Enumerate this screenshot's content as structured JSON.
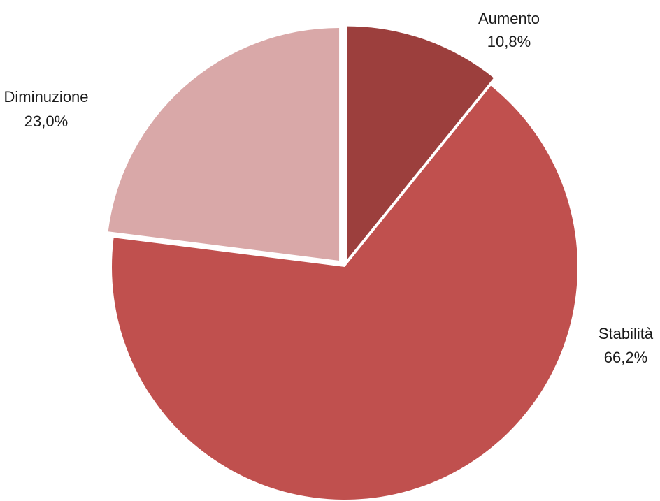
{
  "chart_data": {
    "type": "pie",
    "start_angle_deg": 0,
    "direction": "clockwise",
    "slices": [
      {
        "label": "Aumento",
        "value": 10.8,
        "value_label": "10,8%",
        "color": "#9c3f3d",
        "exploded": true
      },
      {
        "label": "Stabilità",
        "value": 66.2,
        "value_label": "66,2%",
        "color": "#c0504e",
        "exploded": false
      },
      {
        "label": "Diminuzione",
        "value": 23.0,
        "value_label": "23,0%",
        "color": "#d9a8a8",
        "exploded": true
      }
    ]
  }
}
